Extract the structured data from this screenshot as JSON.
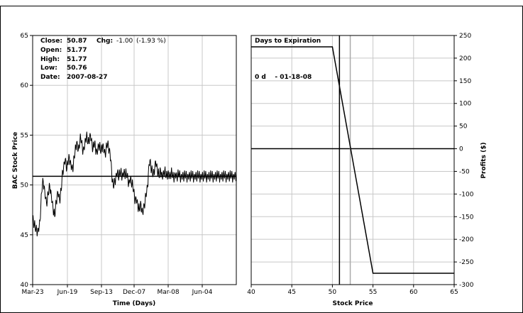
{
  "chart_data": [
    {
      "type": "line",
      "xlabel": "Time (Days)",
      "ylabel": "BAC Stock Price",
      "ylim": [
        40,
        65
      ],
      "yticks": [
        "40",
        "45",
        "50",
        "55",
        "60",
        "65"
      ],
      "xticks": [
        "Mar-23",
        "Jun-19",
        "Sep-13",
        "Dec-07",
        "Mar-08",
        "Jun-04"
      ],
      "grid": true,
      "reference_line": 50.87,
      "info": {
        "close_label": "Close:",
        "close": "50.87",
        "chg_label": "Chg:",
        "chg": "-1.00",
        "chg_pct": "(-1.93 %)",
        "open_label": "Open:",
        "open": "51.77",
        "high_label": "High:",
        "high": "51.77",
        "low_label": "Low:",
        "low": "50.76",
        "date_label": "Date:",
        "date": "2007-08-27"
      },
      "series": [
        {
          "x": [
            0,
            2,
            4,
            6,
            8,
            10,
            12,
            14,
            16,
            18,
            20,
            22,
            24,
            26,
            28,
            30,
            32,
            34,
            36,
            38,
            40,
            42,
            44,
            46,
            48,
            50,
            52,
            54,
            56,
            58,
            60,
            62,
            64,
            66,
            68,
            70,
            72,
            74,
            76,
            78,
            80,
            82,
            84,
            86,
            88,
            90,
            92,
            94,
            96,
            98,
            100,
            102,
            104,
            106,
            108,
            110,
            112,
            114,
            116,
            118,
            120,
            122,
            124,
            126,
            128,
            130,
            132,
            134,
            136,
            138,
            140,
            142,
            144,
            146,
            148,
            150,
            152,
            154,
            156,
            158,
            160,
            162,
            164,
            166,
            168,
            170,
            172,
            174,
            176,
            178,
            180,
            182,
            184,
            186,
            188,
            190,
            192,
            194,
            196,
            198,
            200,
            202,
            204,
            206,
            208,
            210,
            212,
            214,
            216,
            218,
            220,
            222,
            224,
            226,
            228,
            230,
            232,
            234,
            236,
            238,
            240,
            242,
            244,
            246,
            248,
            250,
            252,
            254,
            256,
            258,
            260,
            262,
            264,
            266,
            268,
            270,
            272,
            274,
            276,
            278,
            280,
            282,
            284,
            286,
            288,
            290,
            292,
            294,
            296,
            298,
            300,
            302,
            304,
            306,
            308,
            310,
            312,
            314,
            316,
            318,
            320,
            322,
            324,
            326,
            328,
            330,
            332,
            334,
            336,
            338,
            340,
            342,
            344,
            346,
            348,
            350,
            352,
            354,
            356,
            358,
            360,
            362,
            364,
            366,
            368,
            370,
            372,
            374,
            376,
            378,
            380,
            382,
            384,
            386,
            388,
            390,
            392,
            394,
            396,
            398,
            400,
            402,
            404,
            406,
            408,
            410,
            412,
            414,
            416,
            418,
            420,
            422,
            424,
            426,
            428,
            430,
            432,
            434,
            436,
            438,
            440,
            442,
            444,
            446,
            448,
            450,
            452,
            454,
            456,
            458,
            460,
            462,
            464,
            466,
            468,
            470,
            472,
            474,
            476,
            478,
            480,
            482,
            484,
            486,
            488,
            490,
            492,
            494,
            496,
            498,
            500
          ],
          "values": [
            46.8,
            46.4,
            46.0,
            45.7,
            45.5,
            45.6,
            45.3,
            45.6,
            45.8,
            46.4,
            47.8,
            49.2,
            50.1,
            50.4,
            49.9,
            49.3,
            48.7,
            48.2,
            48.5,
            49.0,
            49.6,
            49.9,
            49.5,
            48.9,
            48.3,
            47.7,
            47.2,
            46.8,
            47.6,
            48.4,
            48.9,
            49.3,
            49.0,
            48.5,
            48.8,
            49.4,
            50.6,
            51.4,
            51.8,
            52.3,
            52.6,
            52.1,
            51.6,
            52.1,
            52.5,
            52.8,
            52.4,
            52.0,
            51.8,
            51.6,
            52.0,
            52.7,
            53.3,
            53.9,
            54.3,
            54.0,
            53.5,
            53.9,
            54.4,
            54.7,
            54.3,
            53.8,
            53.5,
            53.7,
            54.1,
            54.6,
            54.9,
            54.6,
            54.2,
            54.5,
            54.9,
            55.0,
            54.6,
            54.0,
            53.6,
            53.9,
            54.2,
            53.8,
            53.5,
            53.3,
            53.6,
            54.0,
            53.9,
            53.5,
            53.4,
            53.8,
            54.0,
            53.8,
            53.4,
            53.1,
            53.4,
            53.9,
            54.1,
            53.9,
            53.6,
            53.2,
            52.5,
            51.3,
            50.3,
            49.8,
            50.1,
            50.4,
            50.8,
            51.1,
            51.3,
            51.1,
            50.8,
            51.1,
            51.3,
            51.2,
            50.9,
            51.1,
            51.3,
            51.2,
            51.0,
            51.1,
            50.9,
            50.6,
            50.2,
            50.4,
            50.7,
            50.4,
            50.1,
            49.8,
            49.4,
            48.9,
            48.5,
            48.7,
            48.4,
            48.0,
            47.6,
            47.5,
            47.8,
            48.1,
            47.6,
            47.2,
            47.6,
            48.0,
            48.3,
            48.9,
            49.3,
            49.8,
            51.1,
            52.1,
            52.5,
            51.9,
            51.5,
            51.2,
            51.0,
            51.3,
            51.9,
            52.4,
            52.0,
            51.6,
            51.2,
            50.9,
            51.1,
            51.5,
            51.2,
            50.9,
            51.0,
            51.2,
            51.4,
            51.1,
            50.9,
            51.0,
            51.3,
            51.1,
            50.9,
            51.0,
            51.2,
            51.1,
            50.9,
            50.8,
            50.9,
            51.1,
            51.0,
            50.8,
            50.9,
            51.0,
            51.1,
            50.9,
            50.8,
            50.9,
            51.0,
            50.9,
            50.8,
            50.9,
            51.0,
            50.9,
            50.8,
            50.9,
            51.0,
            50.9,
            50.8,
            50.9,
            51.0,
            50.9,
            50.8,
            50.9,
            51.0,
            50.9,
            50.8,
            50.9,
            51.0,
            50.9,
            50.8,
            50.9,
            51.0,
            50.9,
            50.8,
            50.9,
            51.0,
            50.9,
            50.8,
            50.9,
            51.0,
            50.9,
            50.8,
            50.9,
            51.0,
            50.9,
            50.8,
            50.9,
            51.0,
            50.9,
            50.8,
            50.9,
            51.0,
            50.9,
            50.8,
            50.9,
            51.0,
            50.9,
            50.8,
            50.9,
            51.0,
            50.9,
            50.8,
            50.9,
            51.0,
            50.9,
            50.8,
            50.9,
            51.0,
            50.9,
            50.8,
            50.9,
            51.0,
            50.9,
            50.87
          ]
        }
      ]
    },
    {
      "type": "line",
      "xlabel": "Stock Price",
      "ylabel": "Profits ($)",
      "xlim": [
        40,
        65
      ],
      "ylim": [
        -300,
        250
      ],
      "xticks": [
        "40",
        "45",
        "50",
        "55",
        "60",
        "65"
      ],
      "yticks": [
        "250",
        "200",
        "150",
        "100",
        "50",
        "0",
        "-50",
        "-100",
        "-150",
        "-200",
        "-250",
        "-300"
      ],
      "grid": true,
      "legend_title": "Days to Expiration",
      "legend_entry": "0 d    - 01-18-08",
      "current_price": 50.87,
      "breakeven": 52.2,
      "series": [
        {
          "x": [
            40,
            50,
            55,
            65
          ],
          "values": [
            225,
            225,
            -275,
            -275
          ]
        }
      ]
    }
  ]
}
